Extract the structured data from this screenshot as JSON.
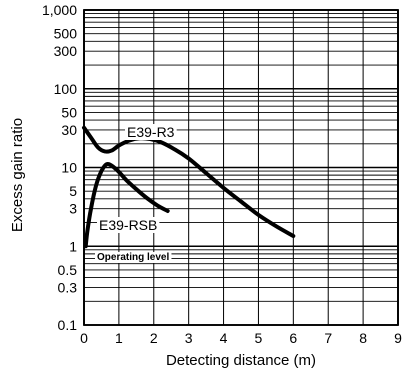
{
  "chart_data": {
    "type": "line",
    "title": "",
    "xlabel": "Detecting distance (m)",
    "ylabel": "Excess gain ratio",
    "xlim": [
      0,
      9
    ],
    "ylim": [
      0.1,
      1000
    ],
    "yscale": "log",
    "grid": true,
    "x_ticks": [
      "0",
      "1",
      "2",
      "3",
      "4",
      "5",
      "6",
      "7",
      "8",
      "9"
    ],
    "y_ticks": [
      {
        "value": 1000,
        "label": "1,000"
      },
      {
        "value": 500,
        "label": "500"
      },
      {
        "value": 300,
        "label": "300"
      },
      {
        "value": 100,
        "label": "100"
      },
      {
        "value": 50,
        "label": "50"
      },
      {
        "value": 30,
        "label": "30"
      },
      {
        "value": 10,
        "label": "10"
      },
      {
        "value": 5,
        "label": "5"
      },
      {
        "value": 3,
        "label": "3"
      },
      {
        "value": 1,
        "label": "1"
      },
      {
        "value": 0.5,
        "label": "0.5"
      },
      {
        "value": 0.3,
        "label": "0.3"
      },
      {
        "value": 0.1,
        "label": "0.1"
      }
    ],
    "series": [
      {
        "name": "E39-R3",
        "x": [
          0.0,
          0.2,
          0.4,
          0.6,
          0.8,
          1.0,
          1.3,
          1.6,
          1.9,
          2.2,
          2.6,
          3.0,
          3.5,
          4.0,
          4.5,
          5.0,
          5.5,
          6.0
        ],
        "y": [
          32,
          24,
          18,
          16,
          16.5,
          19,
          22,
          23.5,
          23,
          21,
          17,
          13,
          8.5,
          5.5,
          3.7,
          2.5,
          1.8,
          1.35
        ]
      },
      {
        "name": "E39-RSB",
        "x": [
          0.05,
          0.1,
          0.2,
          0.35,
          0.5,
          0.65,
          0.8,
          1.0,
          1.2,
          1.5,
          1.8,
          2.1,
          2.4
        ],
        "y": [
          1.0,
          1.6,
          3.0,
          6.0,
          9.0,
          11.0,
          10.5,
          8.8,
          7.0,
          5.3,
          4.1,
          3.3,
          2.8
        ]
      }
    ],
    "annotations": [
      {
        "text": "Operating level",
        "y": 1
      }
    ]
  }
}
